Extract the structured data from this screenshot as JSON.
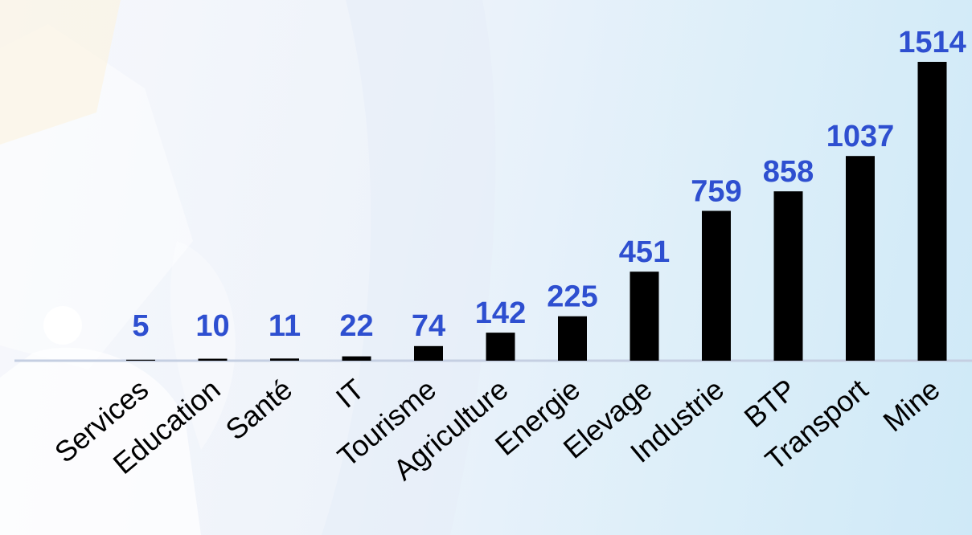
{
  "chart_data": {
    "type": "bar",
    "categories": [
      "Services",
      "Education",
      "Santé",
      "IT",
      "Tourisme",
      "Agriculture",
      "Energie",
      "Elevage",
      "Industrie",
      "BTP",
      "Transport",
      "Mine"
    ],
    "values": [
      5,
      10,
      11,
      22,
      74,
      142,
      225,
      451,
      759,
      858,
      1037,
      1514
    ],
    "data_labels": [
      "5",
      "10",
      "11",
      "22",
      "74",
      "142",
      "225",
      "451",
      "759",
      "858",
      "1037",
      "1514"
    ],
    "title": "",
    "xlabel": "",
    "ylabel": "",
    "ylim": [
      0,
      1514
    ],
    "grid": false,
    "legend": "none",
    "colors": {
      "bar": "#000000",
      "data_label": "#2e4fd0",
      "tick_label": "#000000",
      "axis_line": "#c5cfe2"
    }
  }
}
